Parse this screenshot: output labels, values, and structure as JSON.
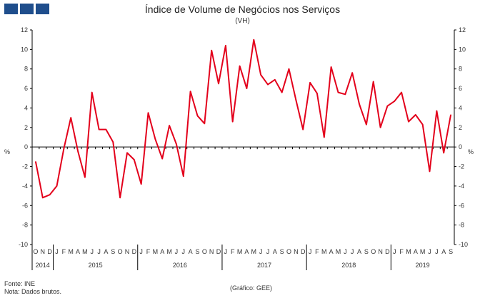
{
  "header": {
    "title": "Índice de Volume de Negócios nos Serviços",
    "subtitle": "(VH)",
    "y_unit_left": "%",
    "y_unit_right": "%"
  },
  "footer": {
    "source": "Fonte: INE",
    "note": "Nota: Dados brutos.",
    "credit": "(Gráfico: GEE)"
  },
  "colors": {
    "line": "#e3001b",
    "logo": "#1f4e8c",
    "axis": "#000000"
  },
  "chart_data": {
    "type": "line",
    "title": "Índice de Volume de Negócios nos Serviços",
    "subtitle": "(VH)",
    "xlabel": "",
    "ylabel": "%",
    "ylim": [
      -10,
      12
    ],
    "yticks": [
      -10,
      -8,
      -6,
      -4,
      -2,
      0,
      2,
      4,
      6,
      8,
      10,
      12
    ],
    "grid": false,
    "legend": "none",
    "month_labels": [
      "O",
      "N",
      "D",
      "J",
      "F",
      "M",
      "A",
      "M",
      "J",
      "J",
      "A",
      "S",
      "O",
      "N",
      "D",
      "J",
      "F",
      "M",
      "A",
      "M",
      "J",
      "J",
      "A",
      "S",
      "O",
      "N",
      "D",
      "J",
      "F",
      "M",
      "A",
      "M",
      "J",
      "J",
      "A",
      "S",
      "O",
      "N",
      "D",
      "J",
      "F",
      "M",
      "A",
      "M",
      "J",
      "J",
      "A",
      "S",
      "O",
      "N",
      "D",
      "J",
      "F",
      "M",
      "A",
      "M",
      "J",
      "J",
      "A",
      "S"
    ],
    "years": [
      {
        "label": "2014",
        "months": 3
      },
      {
        "label": "2015",
        "months": 12
      },
      {
        "label": "2016",
        "months": 12
      },
      {
        "label": "2017",
        "months": 12
      },
      {
        "label": "2018",
        "months": 12
      },
      {
        "label": "2019",
        "months": 9
      }
    ],
    "series": [
      {
        "values": [
          -1.5,
          -5.2,
          -4.9,
          -4.0,
          -0.2,
          3.0,
          -0.4,
          -3.1,
          5.6,
          1.8,
          1.8,
          0.5,
          -5.2,
          -0.6,
          -1.3,
          -3.8,
          3.5,
          0.8,
          -1.2,
          2.2,
          0.3,
          -3.0,
          5.7,
          3.2,
          2.4,
          9.9,
          6.5,
          10.4,
          2.6,
          8.3,
          6.0,
          11.0,
          7.4,
          6.4,
          6.9,
          5.6,
          8.0,
          4.8,
          1.8,
          6.6,
          5.5,
          1.0,
          8.2,
          5.6,
          5.4,
          7.6,
          4.4,
          2.3,
          6.7,
          2.0,
          4.2,
          4.7,
          5.6,
          2.6,
          3.3,
          2.3,
          -2.5,
          3.7,
          -0.6,
          3.3
        ]
      }
    ]
  }
}
